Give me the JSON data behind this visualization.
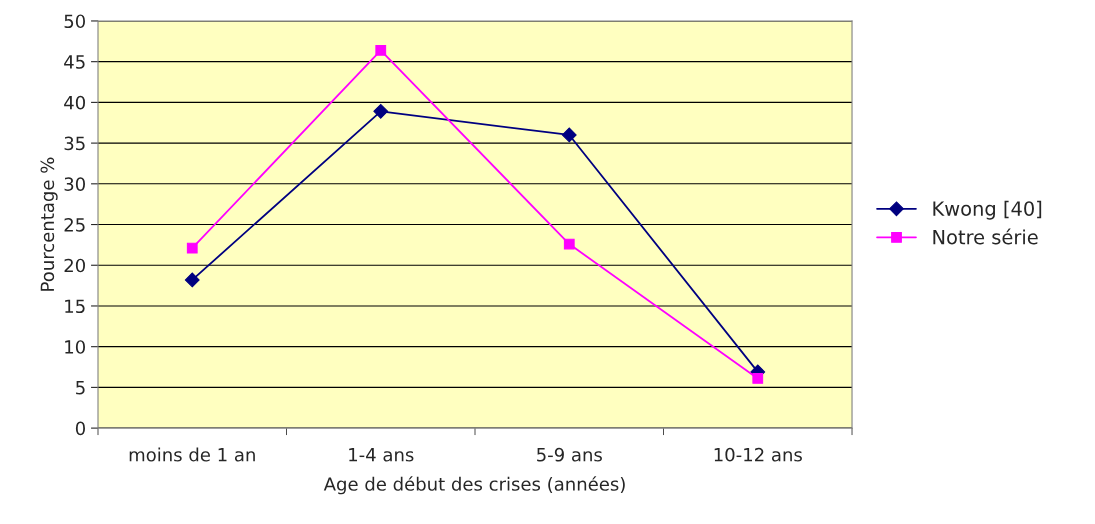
{
  "chart_data": {
    "type": "line",
    "xlabel": "Age de début des crises (années)",
    "ylabel": "Pourcentage %",
    "categories": [
      "moins de 1 an",
      "1-4 ans",
      "5-9 ans",
      "10-12 ans"
    ],
    "series": [
      {
        "name": "Kwong [40]",
        "color": "#000080",
        "marker": "diamond",
        "values": [
          18.2,
          38.9,
          36.0,
          6.9
        ]
      },
      {
        "name": "Notre série",
        "color": "#ff00ff",
        "marker": "square",
        "values": [
          22.1,
          46.4,
          22.6,
          6.1
        ]
      }
    ],
    "ylim": [
      0,
      50
    ],
    "yticks": [
      0,
      5,
      10,
      15,
      20,
      25,
      30,
      35,
      40,
      45,
      50
    ],
    "grid": "y",
    "legend": "right"
  }
}
